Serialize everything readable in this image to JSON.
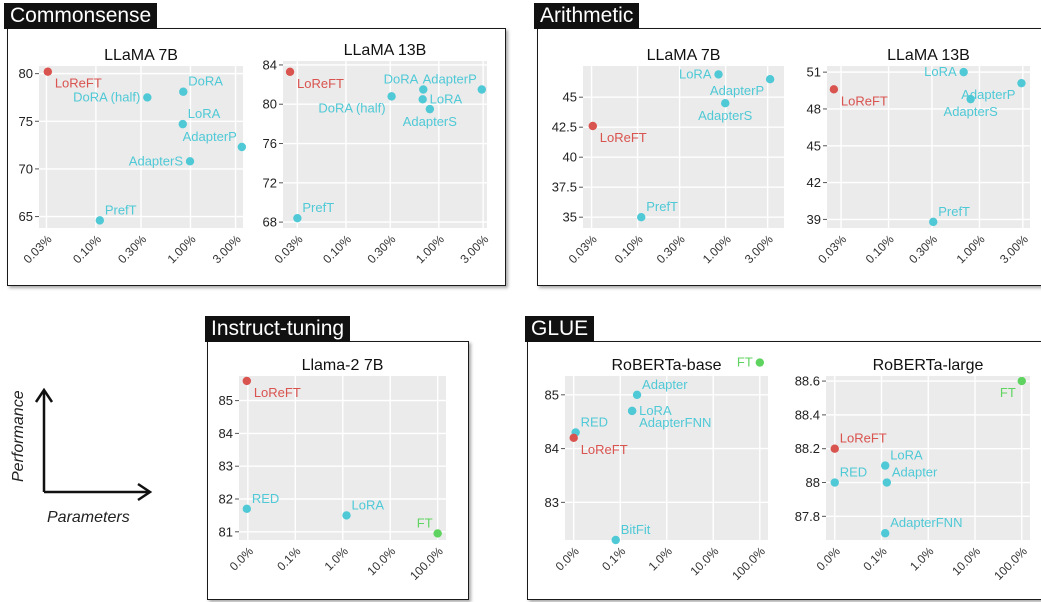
{
  "groups": [
    {
      "id": "commonsense",
      "tag": "Commonsense"
    },
    {
      "id": "arithmetic",
      "tag": "Arithmetic"
    },
    {
      "id": "instruct",
      "tag": "Instruct-tuning"
    },
    {
      "id": "glue",
      "tag": "GLUE"
    }
  ],
  "legend": {
    "y_label": "Performance",
    "x_label": "Parameters"
  },
  "colors": {
    "loreft": "#d9534f",
    "baseline": "#4fc9d6",
    "ft": "#5fd35f",
    "grid": "#ffffff",
    "plot_bg": "#ebebeb"
  },
  "chart_data": [
    {
      "group": "commonsense",
      "type": "scatter",
      "title": "LLaMA 7B",
      "x_scale": "log",
      "xticks": [
        0.03,
        0.1,
        0.3,
        1,
        3
      ],
      "xticklabels": [
        "0.03%",
        "0.10%",
        "0.30%",
        "1.00%",
        "3.00%"
      ],
      "xlim": [
        0.025,
        3.6
      ],
      "ylim": [
        63.8,
        80.8
      ],
      "yticks": [
        65,
        70,
        75,
        80
      ],
      "yticklabels": [
        "65",
        "70",
        "75",
        "80"
      ],
      "points": [
        {
          "label": "LoReFT",
          "x": 0.031,
          "y": 80.2,
          "color": "loreft",
          "pos": "right-below"
        },
        {
          "label": "DoRA (half)",
          "x": 0.35,
          "y": 77.5,
          "color": "baseline",
          "pos": "left"
        },
        {
          "label": "DoRA",
          "x": 0.84,
          "y": 78.1,
          "color": "baseline",
          "pos": "right-above"
        },
        {
          "label": "LoRA",
          "x": 0.83,
          "y": 74.7,
          "color": "baseline",
          "pos": "right-above"
        },
        {
          "label": "AdapterP",
          "x": 3.5,
          "y": 72.3,
          "color": "baseline",
          "pos": "left-above"
        },
        {
          "label": "AdapterS",
          "x": 0.99,
          "y": 70.8,
          "color": "baseline",
          "pos": "left"
        },
        {
          "label": "PrefT",
          "x": 0.11,
          "y": 64.6,
          "color": "baseline",
          "pos": "right-above"
        }
      ]
    },
    {
      "group": "commonsense",
      "type": "scatter",
      "title": "LLaMA 13B",
      "x_scale": "log",
      "xticks": [
        0.03,
        0.1,
        0.3,
        1,
        3
      ],
      "xticklabels": [
        "0.03%",
        "0.10%",
        "0.30%",
        "1.00%",
        "3.00%"
      ],
      "xlim": [
        0.021,
        3.3
      ],
      "ylim": [
        67.4,
        84.4
      ],
      "yticks": [
        68,
        72,
        76,
        80,
        84
      ],
      "yticklabels": [
        "68",
        "72",
        "76",
        "80",
        "84"
      ],
      "points": [
        {
          "label": "LoReFT",
          "x": 0.025,
          "y": 83.3,
          "color": "loreft",
          "pos": "right-below"
        },
        {
          "label": "DoRA",
          "x": 0.68,
          "y": 81.5,
          "color": "baseline",
          "pos": "left-above"
        },
        {
          "label": "AdapterP",
          "x": 2.9,
          "y": 81.5,
          "color": "baseline",
          "pos": "left-above"
        },
        {
          "label": "DoRA (half)",
          "x": 0.31,
          "y": 80.8,
          "color": "baseline",
          "pos": "left-below"
        },
        {
          "label": "LoRA",
          "x": 0.67,
          "y": 80.5,
          "color": "baseline",
          "pos": "right"
        },
        {
          "label": "AdapterS",
          "x": 0.8,
          "y": 79.5,
          "color": "baseline",
          "pos": "below"
        },
        {
          "label": "PrefT",
          "x": 0.03,
          "y": 68.4,
          "color": "baseline",
          "pos": "right-above"
        }
      ]
    },
    {
      "group": "arithmetic",
      "type": "scatter",
      "title": "LLaMA 7B",
      "x_scale": "log",
      "xticks": [
        0.03,
        0.1,
        0.3,
        1,
        3
      ],
      "xticklabels": [
        "0.03%",
        "0.10%",
        "0.30%",
        "1.00%",
        "3.00%"
      ],
      "xlim": [
        0.024,
        4.6
      ],
      "ylim": [
        34.1,
        47.6
      ],
      "yticks": [
        35,
        37.5,
        40,
        42.5,
        45
      ],
      "yticklabels": [
        "35",
        "37.5",
        "40",
        "42.5",
        "45"
      ],
      "points": [
        {
          "label": "LoRA",
          "x": 0.83,
          "y": 46.9,
          "color": "baseline",
          "pos": "left"
        },
        {
          "label": "AdapterP",
          "x": 3.2,
          "y": 46.5,
          "color": "baseline",
          "pos": "left-below"
        },
        {
          "label": "AdapterS",
          "x": 0.99,
          "y": 44.5,
          "color": "baseline",
          "pos": "below"
        },
        {
          "label": "LoReFT",
          "x": 0.031,
          "y": 42.6,
          "color": "loreft",
          "pos": "right-below"
        },
        {
          "label": "PrefT",
          "x": 0.11,
          "y": 35,
          "color": "baseline",
          "pos": "right-above"
        }
      ]
    },
    {
      "group": "arithmetic",
      "type": "scatter",
      "title": "LLaMA 13B",
      "x_scale": "log",
      "xticks": [
        0.03,
        0.1,
        0.3,
        1,
        3
      ],
      "xticklabels": [
        "0.03%",
        "0.10%",
        "0.30%",
        "1.00%",
        "3.00%"
      ],
      "xlim": [
        0.021,
        3.6
      ],
      "ylim": [
        38.3,
        51.5
      ],
      "yticks": [
        39,
        42,
        45,
        48,
        51
      ],
      "yticklabels": [
        "39",
        "42",
        "45",
        "48",
        "51"
      ],
      "points": [
        {
          "label": "LoRA",
          "x": 0.67,
          "y": 51.0,
          "color": "baseline",
          "pos": "left"
        },
        {
          "label": "AdapterP",
          "x": 2.9,
          "y": 50.1,
          "color": "baseline",
          "pos": "left-below"
        },
        {
          "label": "LoReFT",
          "x": 0.025,
          "y": 49.6,
          "color": "loreft",
          "pos": "right-below"
        },
        {
          "label": "AdapterS",
          "x": 0.8,
          "y": 48.8,
          "color": "baseline",
          "pos": "below"
        },
        {
          "label": "PrefT",
          "x": 0.31,
          "y": 38.8,
          "color": "baseline",
          "pos": "right-above"
        }
      ]
    },
    {
      "group": "instruct",
      "type": "scatter",
      "title": "Llama-2 7B",
      "x_scale": "log",
      "xticks": [
        1,
        10,
        100,
        1000,
        10000
      ],
      "xticklabels": [
        "0.0%",
        "0.1%",
        "1.0%",
        "10.0%",
        "100.0%"
      ],
      "xlim": [
        0.65,
        15000
      ],
      "ylim": [
        80.75,
        85.75
      ],
      "yticks": [
        81,
        82,
        83,
        84,
        85
      ],
      "yticklabels": [
        "81",
        "82",
        "83",
        "84",
        "85"
      ],
      "points": [
        {
          "label": "LoReFT",
          "x": 0.95,
          "y": 85.6,
          "color": "loreft",
          "pos": "right-below"
        },
        {
          "label": "RED",
          "x": 0.95,
          "y": 81.7,
          "color": "baseline",
          "pos": "right-above"
        },
        {
          "label": "LoRA",
          "x": 120,
          "y": 81.5,
          "color": "baseline",
          "pos": "right-above"
        },
        {
          "label": "FT",
          "x": 10000,
          "y": 80.95,
          "color": "ft",
          "pos": "left-above"
        }
      ]
    },
    {
      "group": "glue",
      "type": "scatter",
      "title": "RoBERTa-base",
      "x_scale": "log",
      "xticks": [
        1,
        10,
        100,
        1000,
        10000
      ],
      "xticklabels": [
        "0.0%",
        "0.1%",
        "1.0%",
        "10.0%",
        "100.0%"
      ],
      "xlim": [
        0.65,
        15000
      ],
      "ylim": [
        82.3,
        85.35
      ],
      "yticks": [
        83,
        84,
        85
      ],
      "yticklabels": [
        "83",
        "84",
        "85"
      ],
      "points": [
        {
          "label": "FT",
          "x": 10000,
          "y": 85.6,
          "color": "ft",
          "pos": "left"
        },
        {
          "label": "Adapter",
          "x": 23,
          "y": 85.0,
          "color": "baseline",
          "pos": "right-above"
        },
        {
          "label": "LoRA",
          "x": 18,
          "y": 84.7,
          "color": "baseline",
          "pos": "right"
        },
        {
          "label": "AdapterFNN",
          "x": 18,
          "y": 84.7,
          "color": "baseline",
          "pos": "right-below"
        },
        {
          "label": "RED",
          "x": 1.1,
          "y": 84.3,
          "color": "baseline",
          "pos": "right-above"
        },
        {
          "label": "LoReFT",
          "x": 1.0,
          "y": 84.2,
          "color": "loreft",
          "pos": "right-below"
        },
        {
          "label": "BitFit",
          "x": 8,
          "y": 82.3,
          "color": "baseline",
          "pos": "right-above"
        }
      ]
    },
    {
      "group": "glue",
      "type": "scatter",
      "title": "RoBERTa-large",
      "x_scale": "log",
      "xticks": [
        1,
        10,
        100,
        1000,
        10000
      ],
      "xticklabels": [
        "0.0%",
        "0.1%",
        "1.0%",
        "10.0%",
        "100.0%"
      ],
      "xlim": [
        0.65,
        15000
      ],
      "ylim": [
        87.66,
        88.63
      ],
      "yticks": [
        87.8,
        88,
        88.2,
        88.4,
        88.6
      ],
      "yticklabels": [
        "87.8",
        "88",
        "88.2",
        "88.4",
        "88.6"
      ],
      "points": [
        {
          "label": "FT",
          "x": 10000,
          "y": 88.6,
          "color": "ft",
          "pos": "left-below"
        },
        {
          "label": "LoReFT",
          "x": 1.0,
          "y": 88.2,
          "color": "loreft",
          "pos": "right-above"
        },
        {
          "label": "LoRA",
          "x": 12,
          "y": 88.1,
          "color": "baseline",
          "pos": "right-above"
        },
        {
          "label": "RED",
          "x": 1.0,
          "y": 88.0,
          "color": "baseline",
          "pos": "right-above"
        },
        {
          "label": "Adapter",
          "x": 13,
          "y": 88.0,
          "color": "baseline",
          "pos": "right-above"
        },
        {
          "label": "AdapterFNN",
          "x": 12,
          "y": 87.7,
          "color": "baseline",
          "pos": "right-above"
        }
      ]
    }
  ]
}
